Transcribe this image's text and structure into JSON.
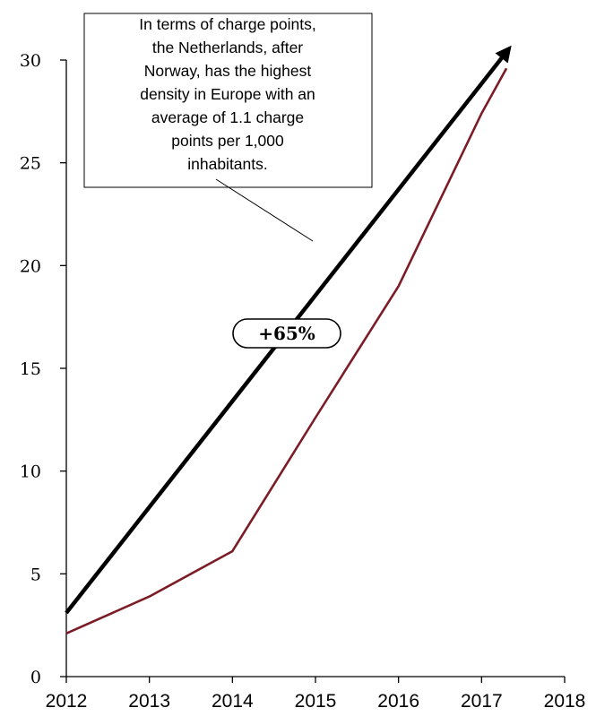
{
  "chart_data": {
    "type": "line",
    "x": [
      2012,
      2013,
      2014,
      2015,
      2016,
      2017,
      2017.3
    ],
    "xticks": [
      "2012",
      "2013",
      "2014",
      "2015",
      "2016",
      "2017",
      "2018"
    ],
    "xlim": [
      2012,
      2018
    ],
    "yticks": [
      "0",
      "5",
      "10",
      "15",
      "20",
      "25",
      "30"
    ],
    "ylim": [
      0,
      30
    ],
    "grid": false,
    "series": [
      {
        "values": [
          2.1,
          3.9,
          6.1,
          12.6,
          19.0,
          27.4,
          29.6
        ],
        "color": "#7b1c26"
      }
    ],
    "trend_arrow": {
      "from": [
        2012,
        3.1
      ],
      "to": [
        2017.3,
        30.4
      ],
      "color": "#000000",
      "label": "+65%"
    },
    "annotation": {
      "lines": [
        "In terms of charge points,",
        "the Netherlands, after",
        "Norway, has the highest",
        "density in Europe with an",
        "average of 1.1 charge",
        "points per 1,000",
        "inhabitants."
      ]
    }
  }
}
